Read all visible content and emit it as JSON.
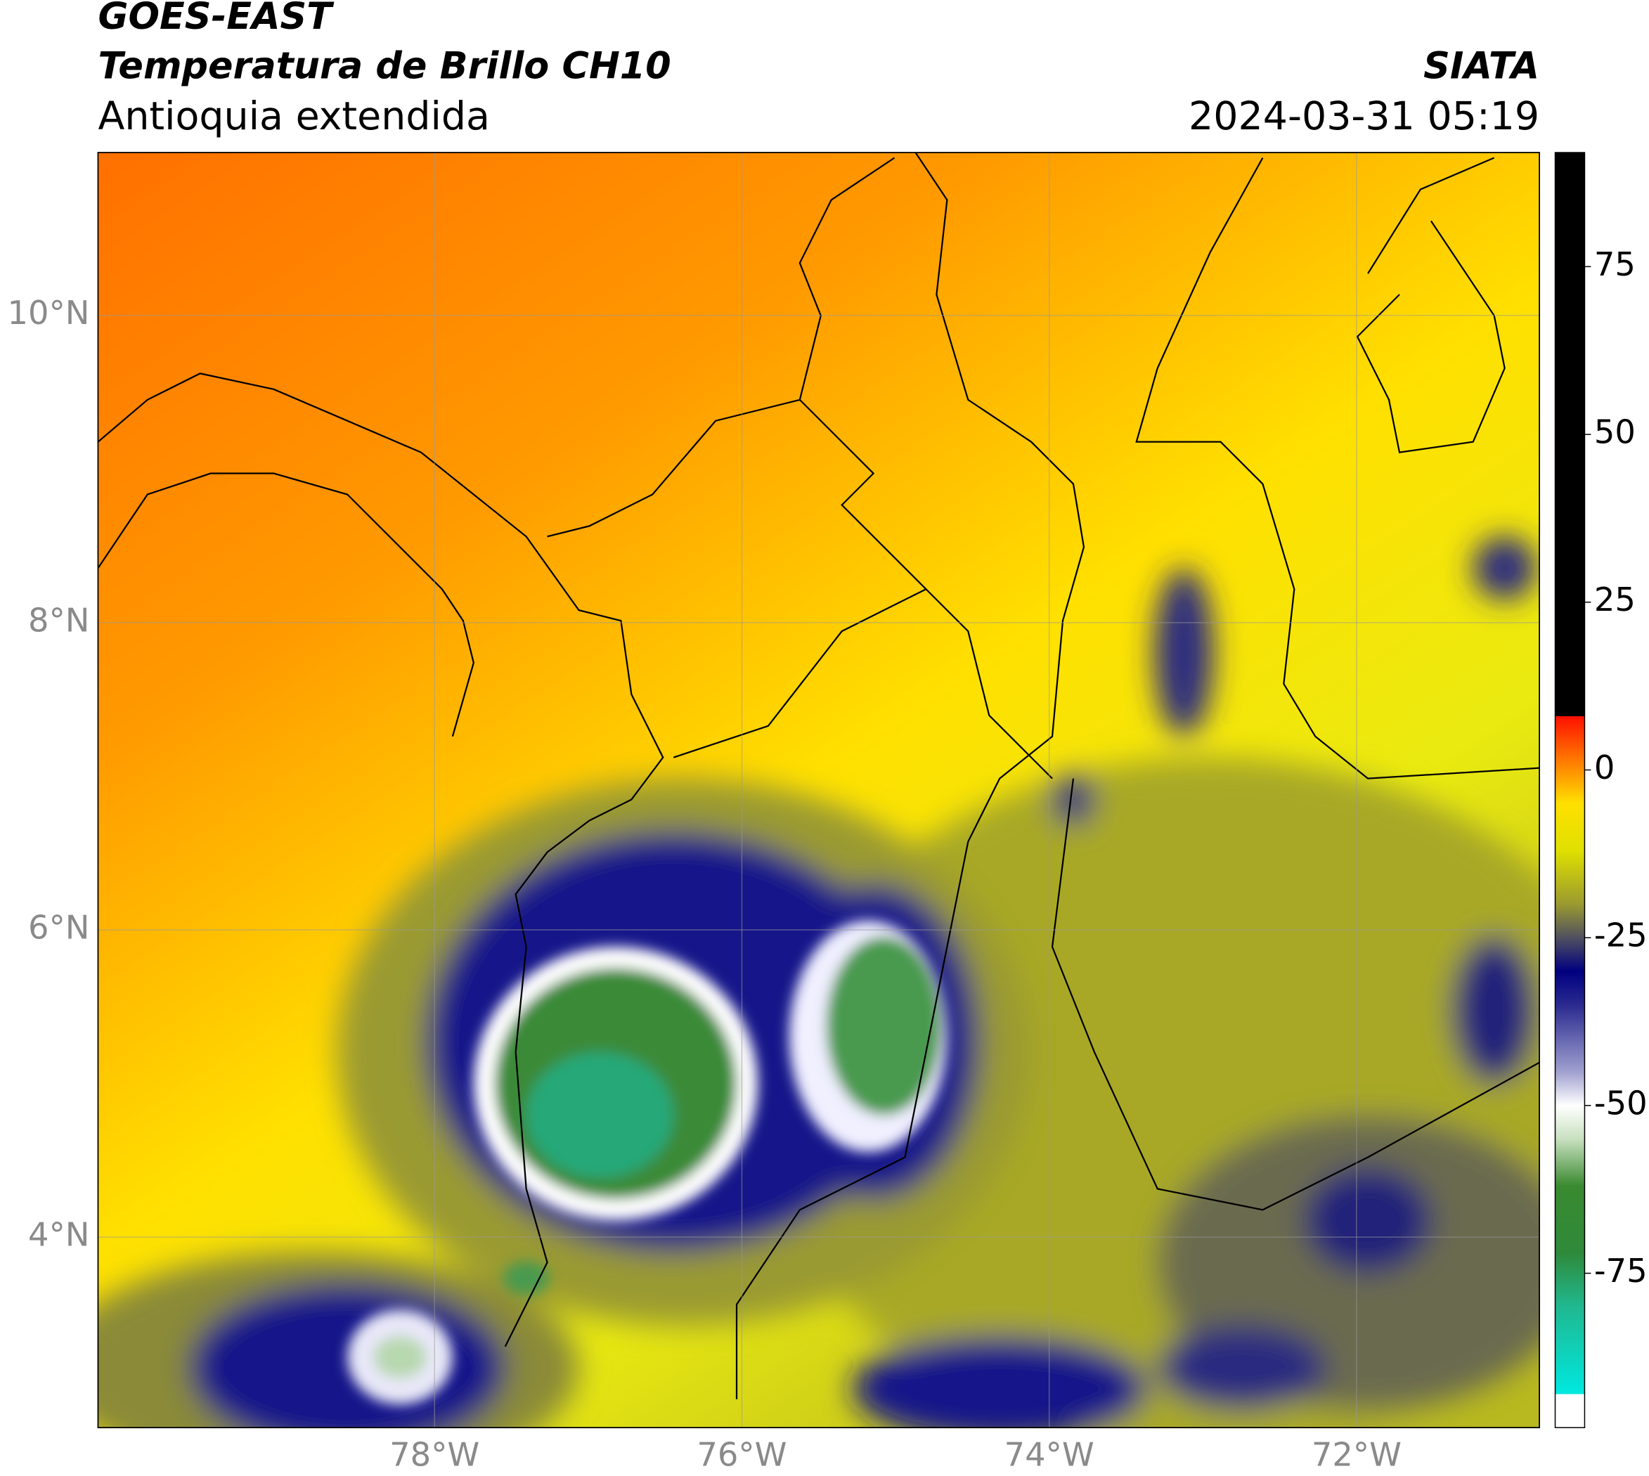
{
  "header": {
    "satellite": "GOES-EAST",
    "product": "Temperatura de Brillo CH10",
    "region": "Antioquia extendida",
    "agency": "SIATA",
    "datetime": "2024-03-31 05:19"
  },
  "map": {
    "xlim": [
      -80.19,
      -70.81
    ],
    "ylim": [
      2.76,
      11.06
    ],
    "xticks": [
      {
        "value": -78,
        "label": "78°W"
      },
      {
        "value": -76,
        "label": "76°W"
      },
      {
        "value": -74,
        "label": "74°W"
      },
      {
        "value": -72,
        "label": "72°W"
      }
    ],
    "yticks": [
      {
        "value": 10,
        "label": "10°N"
      },
      {
        "value": 8,
        "label": "8°N"
      },
      {
        "value": 6,
        "label": "6°N"
      },
      {
        "value": 4,
        "label": "4°N"
      }
    ],
    "grid": true
  },
  "colorbar": {
    "lim": [
      -98,
      92
    ],
    "ticks": [
      75,
      50,
      25,
      0,
      -25,
      -50,
      -75
    ],
    "colors": [
      {
        "value": -98,
        "color": "#ffffff"
      },
      {
        "value": -93,
        "color": "#ffffff"
      },
      {
        "value": -93,
        "color": "#00e8e0"
      },
      {
        "value": -80,
        "color": "#20b890"
      },
      {
        "value": -72,
        "color": "#2e8a3a"
      },
      {
        "value": -62,
        "color": "#3a8a30"
      },
      {
        "value": -55,
        "color": "#c8e0c0"
      },
      {
        "value": -50,
        "color": "#ffffff"
      },
      {
        "value": -45,
        "color": "#a0a0d0"
      },
      {
        "value": -35,
        "color": "#2a2a90"
      },
      {
        "value": -30,
        "color": "#000080"
      },
      {
        "value": -25,
        "color": "#505060"
      },
      {
        "value": -20,
        "color": "#9a9a30"
      },
      {
        "value": -12,
        "color": "#e0e000"
      },
      {
        "value": -5,
        "color": "#ffe000"
      },
      {
        "value": 0,
        "color": "#ff9000"
      },
      {
        "value": 8,
        "color": "#ff1000"
      },
      {
        "value": 8,
        "color": "#000000"
      },
      {
        "value": 92,
        "color": "#000000"
      }
    ]
  }
}
